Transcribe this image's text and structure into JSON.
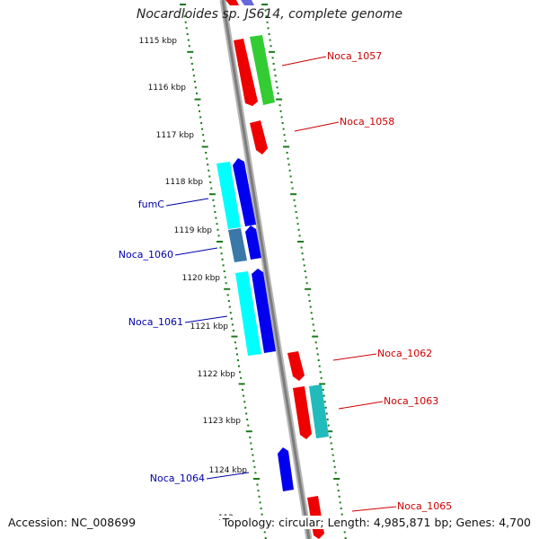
{
  "title": "Nocardioides sp. JS614, complete genome",
  "accession": "Accession: NC_008699",
  "summary": "Topology: circular; Length: 4,985,871 bp; Genes: 4,700",
  "scale_labels": [
    "1115 kbp",
    "1116 kbp",
    "1117 kbp",
    "1118 kbp",
    "1119 kbp",
    "1120 kbp",
    "1121 kbp",
    "1122 kbp",
    "1123 kbp",
    "1124 kbp",
    "112"
  ],
  "gene_labels_right": [
    "Noca_1057",
    "Noca_1058",
    "Noca_1062",
    "Noca_1063",
    "Noca_1065"
  ],
  "gene_labels_left": [
    "fumC",
    "Noca_1060",
    "Noca_1061",
    "Noca_1064"
  ],
  "colors": {
    "forward_gene": "#ee0000",
    "reverse_gene": "#0000ee",
    "cds_green": "#33cc33",
    "cds_cyan": "#00ffff",
    "cds_teal": "#22bbbb",
    "cds_steel": "#3a78a8",
    "backbone": "#8a8a8a",
    "ticks": "#1a7a1a",
    "label_forward": "#cc0000",
    "label_reverse": "#0000aa"
  }
}
